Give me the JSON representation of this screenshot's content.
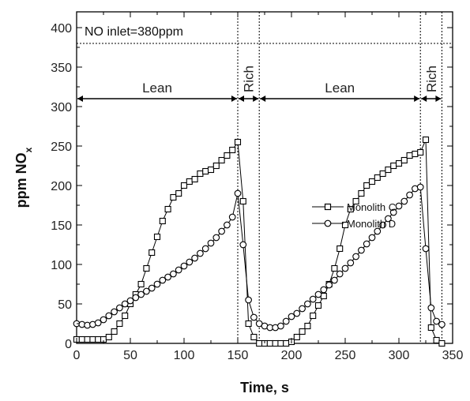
{
  "chart_data": {
    "type": "line",
    "xlabel": "Time, s",
    "ylabel": "ppm NO",
    "ylabel_sub": "x",
    "xlim": [
      0,
      350
    ],
    "ylim": [
      0,
      420
    ],
    "xticks": [
      0,
      50,
      100,
      150,
      200,
      250,
      300,
      350
    ],
    "yticks": [
      0,
      50,
      100,
      150,
      200,
      250,
      300,
      350,
      400
    ],
    "grid": false,
    "legend_position": "upper-right inside",
    "annotation": "NO inlet=380ppm",
    "inlet_value": 380,
    "phase_boundaries": [
      150,
      170,
      320,
      340
    ],
    "phases": [
      {
        "label": "Lean",
        "start": 0,
        "end": 150,
        "rotated": false
      },
      {
        "label": "Rich",
        "start": 150,
        "end": 170,
        "rotated": true
      },
      {
        "label": "Lean",
        "start": 170,
        "end": 320,
        "rotated": false
      },
      {
        "label": "Rich",
        "start": 320,
        "end": 340,
        "rotated": true
      }
    ],
    "phase_arrow_y": 310,
    "series": [
      {
        "name": "Monolith C",
        "marker": "square",
        "x": [
          0,
          5,
          10,
          15,
          20,
          25,
          30,
          35,
          40,
          45,
          50,
          55,
          60,
          65,
          70,
          75,
          80,
          85,
          90,
          95,
          100,
          105,
          110,
          115,
          120,
          125,
          130,
          135,
          140,
          145,
          150,
          155,
          160,
          165,
          170,
          175,
          180,
          185,
          190,
          195,
          200,
          205,
          210,
          215,
          220,
          225,
          230,
          235,
          240,
          245,
          250,
          255,
          260,
          265,
          270,
          275,
          280,
          285,
          290,
          295,
          300,
          305,
          310,
          315,
          320,
          325,
          330,
          335,
          340
        ],
        "y": [
          5,
          5,
          5,
          5,
          5,
          5,
          8,
          15,
          25,
          35,
          50,
          62,
          75,
          95,
          115,
          135,
          155,
          170,
          185,
          190,
          200,
          205,
          208,
          215,
          218,
          220,
          225,
          232,
          238,
          245,
          255,
          180,
          25,
          8,
          0,
          0,
          0,
          0,
          0,
          0,
          2,
          8,
          15,
          22,
          35,
          48,
          60,
          75,
          95,
          120,
          150,
          170,
          180,
          190,
          200,
          205,
          210,
          215,
          220,
          225,
          228,
          232,
          238,
          240,
          242,
          258,
          20,
          4,
          0
        ]
      },
      {
        "name": "Monolith D",
        "marker": "circle",
        "x": [
          0,
          5,
          10,
          15,
          20,
          25,
          30,
          35,
          40,
          45,
          50,
          55,
          60,
          65,
          70,
          75,
          80,
          85,
          90,
          95,
          100,
          105,
          110,
          115,
          120,
          125,
          130,
          135,
          140,
          145,
          150,
          155,
          160,
          165,
          170,
          175,
          180,
          185,
          190,
          195,
          200,
          205,
          210,
          215,
          220,
          225,
          230,
          235,
          240,
          245,
          250,
          255,
          260,
          265,
          270,
          275,
          280,
          285,
          290,
          295,
          300,
          305,
          310,
          315,
          320,
          325,
          330,
          335,
          340
        ],
        "y": [
          25,
          24,
          23,
          24,
          26,
          30,
          35,
          40,
          45,
          50,
          54,
          58,
          62,
          66,
          70,
          75,
          80,
          84,
          88,
          93,
          98,
          103,
          108,
          114,
          120,
          127,
          134,
          142,
          150,
          160,
          190,
          125,
          55,
          33,
          25,
          22,
          20,
          20,
          22,
          28,
          34,
          38,
          44,
          50,
          56,
          62,
          68,
          74,
          80,
          88,
          95,
          102,
          110,
          118,
          126,
          134,
          142,
          150,
          158,
          166,
          174,
          180,
          188,
          196,
          198,
          120,
          45,
          28,
          24
        ]
      }
    ]
  }
}
